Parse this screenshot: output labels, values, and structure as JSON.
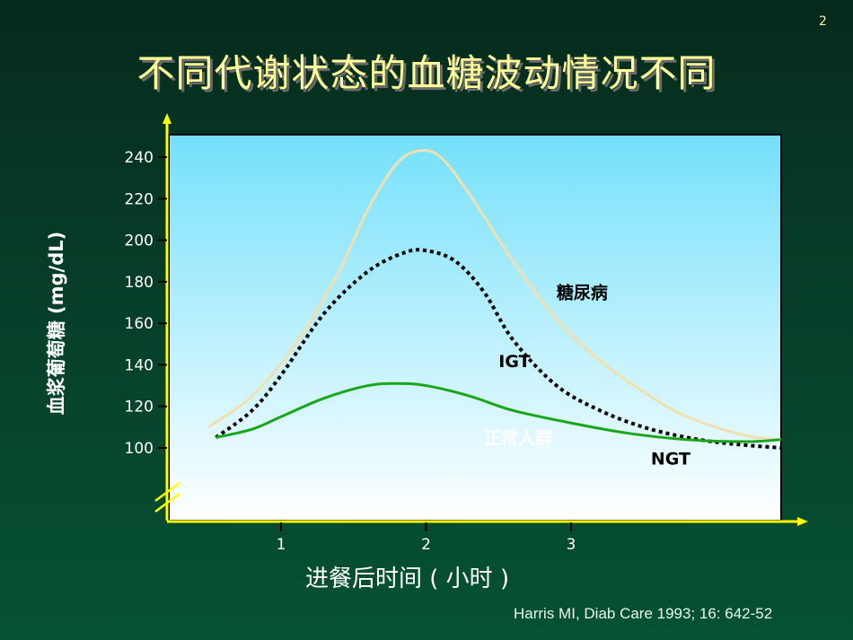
{
  "page_number": "2",
  "title": "不同代谢状态的血糖波动情况不同",
  "citation": "Harris MI, Diab Care 1993; 16: 642-52",
  "colors": {
    "background": "#07402a",
    "title": "#ffff99",
    "axis": "#ffff00",
    "plot_top": "#74e0fb",
    "plot_bottom": "#ffffff",
    "diabetes_curve": "#f0e0b0",
    "igt_curve": "#000000",
    "ngt_curve": "#1aa51a"
  },
  "chart_data": {
    "type": "line",
    "title": "不同代谢状态的血糖波动情况不同",
    "xlabel": "进餐后时间 ( 小时 )",
    "ylabel": "血浆葡萄糖  (mg/dL)",
    "x_ticks": [
      "1",
      "2",
      "3"
    ],
    "y_ticks": [
      "100",
      "120",
      "140",
      "160",
      "180",
      "200",
      "220",
      "240"
    ],
    "ylim": [
      100,
      240
    ],
    "y_axis_break": true,
    "grid": false,
    "series": [
      {
        "name": "糖尿病",
        "style": "solid",
        "color": "#f0e0b0",
        "x": [
          0.5,
          0.8,
          1.1,
          1.4,
          1.6,
          1.8,
          1.95,
          2.1,
          2.3,
          2.6,
          2.9,
          3.2,
          3.5,
          3.8,
          4.2,
          4.45
        ],
        "y": [
          110,
          125,
          150,
          185,
          215,
          237,
          243,
          240,
          222,
          190,
          162,
          142,
          127,
          115,
          106,
          104
        ]
      },
      {
        "name": "IGT",
        "style": "dotted",
        "color": "#000000",
        "x": [
          0.55,
          0.8,
          1.0,
          1.3,
          1.6,
          1.85,
          2.0,
          2.2,
          2.4,
          2.6,
          2.9,
          3.2,
          3.5,
          3.8,
          4.1,
          4.45
        ],
        "y": [
          105,
          118,
          135,
          165,
          185,
          194,
          195,
          190,
          175,
          152,
          130,
          118,
          110,
          105,
          102,
          100
        ]
      },
      {
        "name": "NGT",
        "style": "solid",
        "color": "#1aa51a",
        "x": [
          0.55,
          0.8,
          1.0,
          1.3,
          1.6,
          1.8,
          2.0,
          2.3,
          2.6,
          3.0,
          3.4,
          3.8,
          4.2,
          4.45
        ],
        "y": [
          105,
          109,
          115,
          124,
          130,
          131,
          130,
          125,
          118,
          112,
          107,
          104,
          103,
          104
        ]
      }
    ],
    "annotations": [
      {
        "text": "糖尿病",
        "x": 2.9,
        "y": 172
      },
      {
        "text": "IGT",
        "x": 2.5,
        "y": 139
      },
      {
        "text": "正常人群",
        "x": 2.4,
        "y": 102
      },
      {
        "text": "NGT",
        "x": 3.55,
        "y": 92
      }
    ]
  }
}
